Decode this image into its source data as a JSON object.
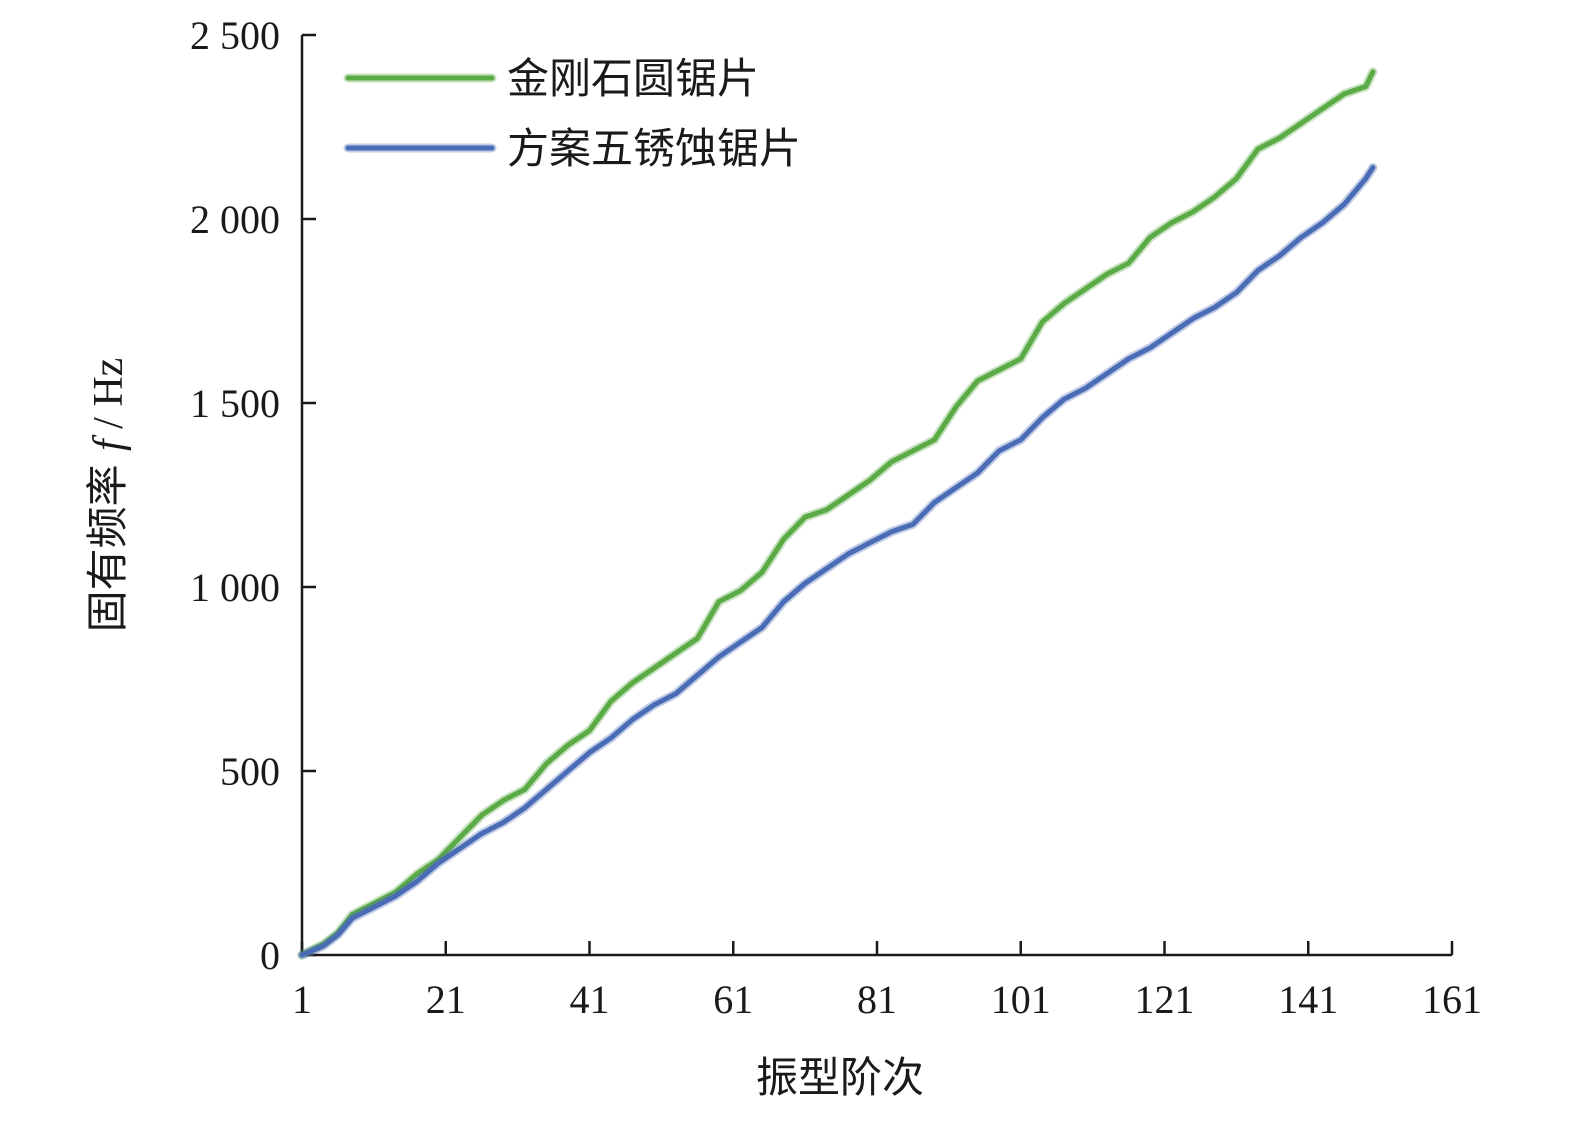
{
  "chart_data": {
    "type": "line",
    "xlabel": "振型阶次",
    "ylabel_parts": [
      "固有频率 ",
      "f",
      " / Hz"
    ],
    "xlim": [
      1,
      161
    ],
    "ylim": [
      0,
      2500
    ],
    "x_ticks": [
      1,
      21,
      41,
      61,
      81,
      101,
      121,
      141,
      161
    ],
    "x_tick_labels": [
      "1",
      "21",
      "41",
      "61",
      "81",
      "101",
      "121",
      "141",
      "161"
    ],
    "y_ticks": [
      0,
      500,
      1000,
      1500,
      2000,
      2500
    ],
    "y_tick_labels": [
      "0",
      "500",
      "1 000",
      "1 500",
      "2 000",
      "2 500"
    ],
    "legend_position": "top-left",
    "series": [
      {
        "name": "金刚石圆锯片",
        "color": "#5aaa46",
        "x": [
          1,
          4,
          6,
          8,
          11,
          14,
          17,
          20,
          23,
          26,
          29,
          32,
          35,
          38,
          41,
          44,
          47,
          50,
          53,
          56,
          59,
          62,
          65,
          68,
          71,
          74,
          77,
          80,
          83,
          86,
          89,
          92,
          95,
          98,
          101,
          104,
          107,
          110,
          113,
          116,
          119,
          122,
          125,
          128,
          131,
          134,
          137,
          140,
          143,
          146,
          149,
          150
        ],
        "y": [
          0,
          30,
          60,
          110,
          140,
          170,
          220,
          260,
          320,
          380,
          420,
          450,
          520,
          570,
          610,
          690,
          740,
          780,
          820,
          860,
          960,
          990,
          1040,
          1130,
          1190,
          1210,
          1250,
          1290,
          1340,
          1370,
          1400,
          1490,
          1560,
          1590,
          1620,
          1720,
          1770,
          1810,
          1850,
          1880,
          1950,
          1990,
          2020,
          2060,
          2110,
          2190,
          2220,
          2260,
          2300,
          2340,
          2360,
          2400
        ]
      },
      {
        "name": "方案五锈蚀锯片",
        "color": "#4a6bb5",
        "x": [
          1,
          4,
          6,
          8,
          11,
          14,
          17,
          20,
          23,
          26,
          29,
          32,
          35,
          38,
          41,
          44,
          47,
          50,
          53,
          56,
          59,
          62,
          65,
          68,
          71,
          74,
          77,
          80,
          83,
          86,
          89,
          92,
          95,
          98,
          101,
          104,
          107,
          110,
          113,
          116,
          119,
          122,
          125,
          128,
          131,
          134,
          137,
          140,
          143,
          146,
          149,
          150
        ],
        "y": [
          0,
          25,
          55,
          100,
          130,
          160,
          200,
          250,
          290,
          330,
          360,
          400,
          450,
          500,
          550,
          590,
          640,
          680,
          710,
          760,
          810,
          850,
          890,
          960,
          1010,
          1050,
          1090,
          1120,
          1150,
          1170,
          1230,
          1270,
          1310,
          1370,
          1400,
          1460,
          1510,
          1540,
          1580,
          1620,
          1650,
          1690,
          1730,
          1760,
          1800,
          1860,
          1900,
          1950,
          1990,
          2040,
          2110,
          2140
        ]
      }
    ]
  }
}
